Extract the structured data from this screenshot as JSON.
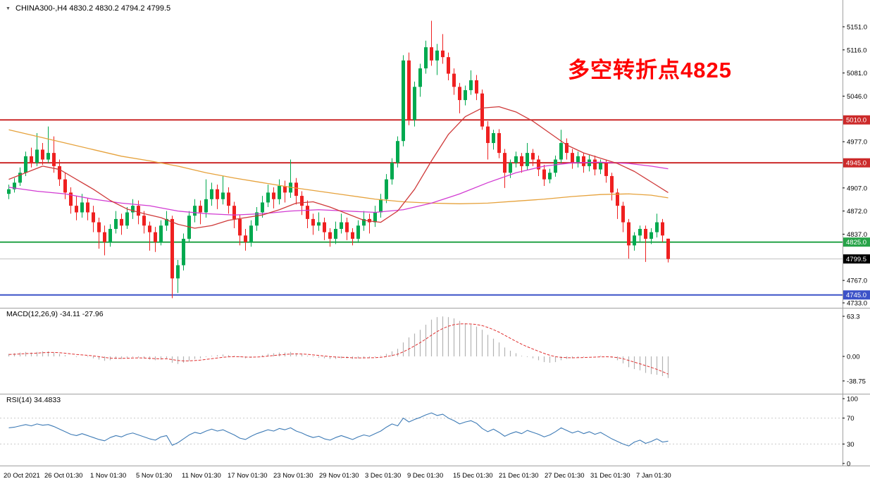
{
  "icons": {
    "chart_marker": "▼"
  },
  "header": {
    "title_line": "CHINA300-,H4 4830.2 4830.2 4794.2 4799.5"
  },
  "annotation": {
    "text": "多空转折点4825",
    "color": "#fe0000"
  },
  "colors": {
    "up": "#00a94f",
    "down": "#ef2020",
    "macd_hist": "#b3b3b3",
    "macd_signal": "#e03030",
    "rsi": "#3e7bb6",
    "ma_fast_red": "#cf3a3a",
    "ma_mid_magenta": "#d23bd2",
    "ma_slow_orange": "#e6a23c",
    "axis_text": "#000000",
    "divider": "#a0a0a0"
  },
  "chart_data": {
    "type": "candlestick",
    "symbol": "CHINA300-",
    "timeframe": "H4",
    "current_bar": {
      "open": 4830.2,
      "high": 4830.2,
      "low": 4794.2,
      "close": 4799.5
    },
    "ylim": [
      4733.0,
      5151.0
    ],
    "y_axis_ticks": [
      5151.0,
      5116.0,
      5081.0,
      5046.0,
      4977.0,
      4907.0,
      4872.0,
      4837.0,
      4767.0,
      4733.0
    ],
    "hlines": [
      {
        "value": 5010.0,
        "label": "5010.0",
        "color": "#cc2a2a",
        "width": 2
      },
      {
        "value": 4945.0,
        "label": "4945.0",
        "color": "#cc2a2a",
        "width": 2
      },
      {
        "value": 4825.0,
        "label": "4825.0",
        "color": "#27a348",
        "width": 2
      },
      {
        "value": 4745.0,
        "label": "4745.0",
        "color": "#3c52c8",
        "width": 2
      },
      {
        "value": 4799.5,
        "label": "4799.5",
        "color": "#c0c0c0",
        "width": 1,
        "label_bg": "#000000",
        "role": "current-price-line"
      }
    ],
    "x_labels": [
      [
        "20 Oct 2021",
        5
      ],
      [
        "26 Oct 01:30",
        63
      ],
      [
        "1 Nov 01:30",
        128
      ],
      [
        "5 Nov 01:30",
        193
      ],
      [
        "11 Nov 01:30",
        258
      ],
      [
        "17 Nov 01:30",
        323
      ],
      [
        "23 Nov 01:30",
        388
      ],
      [
        "29 Nov 01:30",
        453
      ],
      [
        "3 Dec 01:30",
        518
      ],
      [
        "9 Dec 01:30",
        578
      ],
      [
        "15 Dec 01:30",
        643
      ],
      [
        "21 Dec 01:30",
        708
      ],
      [
        "27 Dec 01:30",
        773
      ],
      [
        "31 Dec 01:30",
        838
      ],
      [
        "7 Jan 01:30",
        903
      ]
    ],
    "candles": [
      [
        4898,
        4912,
        4890,
        4905
      ],
      [
        4905,
        4922,
        4900,
        4915
      ],
      [
        4915,
        4938,
        4910,
        4930
      ],
      [
        4930,
        4962,
        4925,
        4955
      ],
      [
        4955,
        4968,
        4938,
        4945
      ],
      [
        4945,
        4990,
        4940,
        4965
      ],
      [
        4965,
        4975,
        4942,
        4950
      ],
      [
        4950,
        5000,
        4945,
        4960
      ],
      [
        4960,
        4985,
        4930,
        4940
      ],
      [
        4940,
        4950,
        4910,
        4920
      ],
      [
        4920,
        4930,
        4890,
        4900
      ],
      [
        4900,
        4908,
        4868,
        4880
      ],
      [
        4880,
        4895,
        4858,
        4870
      ],
      [
        4870,
        4898,
        4862,
        4885
      ],
      [
        4885,
        4892,
        4858,
        4870
      ],
      [
        4870,
        4880,
        4840,
        4855
      ],
      [
        4855,
        4862,
        4815,
        4840
      ],
      [
        4840,
        4850,
        4805,
        4825
      ],
      [
        4825,
        4852,
        4818,
        4845
      ],
      [
        4845,
        4872,
        4838,
        4860
      ],
      [
        4860,
        4868,
        4836,
        4850
      ],
      [
        4850,
        4878,
        4845,
        4870
      ],
      [
        4870,
        4890,
        4860,
        4880
      ],
      [
        4880,
        4888,
        4852,
        4865
      ],
      [
        4865,
        4872,
        4838,
        4850
      ],
      [
        4850,
        4856,
        4812,
        4840
      ],
      [
        4840,
        4848,
        4810,
        4825
      ],
      [
        4825,
        4858,
        4820,
        4850
      ],
      [
        4850,
        4872,
        4842,
        4860
      ],
      [
        4860,
        4865,
        4740,
        4770
      ],
      [
        4770,
        4798,
        4748,
        4790
      ],
      [
        4790,
        4838,
        4782,
        4830
      ],
      [
        4830,
        4872,
        4825,
        4865
      ],
      [
        4865,
        4890,
        4855,
        4880
      ],
      [
        4880,
        4888,
        4852,
        4870
      ],
      [
        4870,
        4920,
        4862,
        4890
      ],
      [
        4890,
        4915,
        4880,
        4905
      ],
      [
        4905,
        4912,
        4875,
        4890
      ],
      [
        4890,
        4925,
        4882,
        4900
      ],
      [
        4900,
        4908,
        4868,
        4880
      ],
      [
        4880,
        4886,
        4846,
        4860
      ],
      [
        4860,
        4866,
        4820,
        4835
      ],
      [
        4835,
        4845,
        4812,
        4825
      ],
      [
        4825,
        4858,
        4818,
        4850
      ],
      [
        4850,
        4878,
        4842,
        4870
      ],
      [
        4870,
        4895,
        4862,
        4885
      ],
      [
        4885,
        4912,
        4878,
        4900
      ],
      [
        4900,
        4908,
        4876,
        4890
      ],
      [
        4890,
        4920,
        4882,
        4910
      ],
      [
        4910,
        4918,
        4885,
        4900
      ],
      [
        4900,
        4950,
        4892,
        4915
      ],
      [
        4915,
        4922,
        4882,
        4895
      ],
      [
        4895,
        4902,
        4866,
        4880
      ],
      [
        4880,
        4888,
        4846,
        4860
      ],
      [
        4860,
        4868,
        4836,
        4850
      ],
      [
        4850,
        4870,
        4842,
        4855
      ],
      [
        4855,
        4862,
        4828,
        4840
      ],
      [
        4840,
        4846,
        4818,
        4830
      ],
      [
        4830,
        4856,
        4822,
        4845
      ],
      [
        4845,
        4868,
        4838,
        4855
      ],
      [
        4855,
        4862,
        4828,
        4840
      ],
      [
        4840,
        4846,
        4820,
        4830
      ],
      [
        4830,
        4858,
        4824,
        4850
      ],
      [
        4850,
        4872,
        4842,
        4860
      ],
      [
        4860,
        4868,
        4838,
        4855
      ],
      [
        4855,
        4880,
        4848,
        4870
      ],
      [
        4870,
        4898,
        4862,
        4890
      ],
      [
        4890,
        4928,
        4884,
        4920
      ],
      [
        4920,
        4952,
        4912,
        4945
      ],
      [
        4945,
        4985,
        4938,
        4978
      ],
      [
        4978,
        5108,
        4970,
        5100
      ],
      [
        5100,
        5112,
        5002,
        5010
      ],
      [
        5010,
        5068,
        5000,
        5060
      ],
      [
        5060,
        5095,
        5045,
        5088
      ],
      [
        5088,
        5130,
        5080,
        5120
      ],
      [
        5120,
        5160,
        5092,
        5100
      ],
      [
        5100,
        5125,
        5078,
        5115
      ],
      [
        5115,
        5140,
        5095,
        5105
      ],
      [
        5105,
        5112,
        5070,
        5080
      ],
      [
        5080,
        5088,
        5048,
        5060
      ],
      [
        5060,
        5066,
        5020,
        5040
      ],
      [
        5040,
        5062,
        5032,
        5055
      ],
      [
        5055,
        5085,
        5048,
        5070
      ],
      [
        5070,
        5078,
        5040,
        5050
      ],
      [
        5050,
        5056,
        4995,
        5000
      ],
      [
        5000,
        5008,
        4950,
        4975
      ],
      [
        4975,
        4995,
        4965,
        4990
      ],
      [
        4990,
        4996,
        4952,
        4960
      ],
      [
        4960,
        4966,
        4907,
        4930
      ],
      [
        4930,
        4950,
        4922,
        4945
      ],
      [
        4945,
        4962,
        4938,
        4955
      ],
      [
        4955,
        4960,
        4930,
        4940
      ],
      [
        4940,
        4975,
        4934,
        4960
      ],
      [
        4960,
        4966,
        4940,
        4950
      ],
      [
        4950,
        4956,
        4925,
        4935
      ],
      [
        4935,
        4942,
        4910,
        4920
      ],
      [
        4920,
        4936,
        4914,
        4930
      ],
      [
        4930,
        4956,
        4924,
        4950
      ],
      [
        4950,
        4995,
        4944,
        4975
      ],
      [
        4975,
        4982,
        4950,
        4960
      ],
      [
        4960,
        4966,
        4936,
        4945
      ],
      [
        4945,
        4962,
        4938,
        4955
      ],
      [
        4955,
        4960,
        4930,
        4940
      ],
      [
        4940,
        4958,
        4932,
        4950
      ],
      [
        4950,
        4956,
        4926,
        4935
      ],
      [
        4935,
        4950,
        4928,
        4945
      ],
      [
        4945,
        4950,
        4915,
        4925
      ],
      [
        4925,
        4930,
        4888,
        4900
      ],
      [
        4900,
        4906,
        4860,
        4880
      ],
      [
        4880,
        4886,
        4840,
        4855
      ],
      [
        4855,
        4860,
        4800,
        4820
      ],
      [
        4820,
        4840,
        4812,
        4835
      ],
      [
        4835,
        4850,
        4826,
        4845
      ],
      [
        4845,
        4850,
        4795,
        4830
      ],
      [
        4830,
        4846,
        4822,
        4840
      ],
      [
        4840,
        4868,
        4832,
        4855
      ],
      [
        4855,
        4860,
        4825,
        4835
      ],
      [
        4830.2,
        4830.2,
        4794.2,
        4799.5
      ]
    ],
    "ma_orange": [
      [
        0,
        4995
      ],
      [
        5,
        4985
      ],
      [
        10,
        4975
      ],
      [
        15,
        4965
      ],
      [
        20,
        4955
      ],
      [
        25,
        4948
      ],
      [
        30,
        4940
      ],
      [
        35,
        4930
      ],
      [
        40,
        4922
      ],
      [
        45,
        4915
      ],
      [
        50,
        4908
      ],
      [
        55,
        4902
      ],
      [
        60,
        4896
      ],
      [
        65,
        4890
      ],
      [
        70,
        4886
      ],
      [
        75,
        4884
      ],
      [
        80,
        4883
      ],
      [
        85,
        4884
      ],
      [
        90,
        4887
      ],
      [
        95,
        4890
      ],
      [
        100,
        4894
      ],
      [
        105,
        4897
      ],
      [
        110,
        4898
      ],
      [
        114,
        4896
      ],
      [
        117,
        4892
      ]
    ],
    "ma_magenta": [
      [
        0,
        4908
      ],
      [
        5,
        4902
      ],
      [
        10,
        4898
      ],
      [
        15,
        4890
      ],
      [
        20,
        4884
      ],
      [
        25,
        4880
      ],
      [
        30,
        4872
      ],
      [
        35,
        4868
      ],
      [
        40,
        4866
      ],
      [
        45,
        4868
      ],
      [
        50,
        4872
      ],
      [
        55,
        4874
      ],
      [
        60,
        4872
      ],
      [
        65,
        4870
      ],
      [
        70,
        4874
      ],
      [
        75,
        4884
      ],
      [
        80,
        4898
      ],
      [
        85,
        4915
      ],
      [
        90,
        4930
      ],
      [
        95,
        4940
      ],
      [
        100,
        4945
      ],
      [
        105,
        4946
      ],
      [
        110,
        4944
      ],
      [
        114,
        4940
      ],
      [
        117,
        4936
      ]
    ],
    "ma_red": [
      [
        0,
        4920
      ],
      [
        3,
        4930
      ],
      [
        6,
        4940
      ],
      [
        9,
        4935
      ],
      [
        12,
        4920
      ],
      [
        15,
        4905
      ],
      [
        18,
        4888
      ],
      [
        21,
        4875
      ],
      [
        24,
        4868
      ],
      [
        27,
        4862
      ],
      [
        30,
        4852
      ],
      [
        33,
        4846
      ],
      [
        36,
        4850
      ],
      [
        39,
        4858
      ],
      [
        42,
        4862
      ],
      [
        45,
        4866
      ],
      [
        48,
        4874
      ],
      [
        51,
        4884
      ],
      [
        54,
        4886
      ],
      [
        57,
        4878
      ],
      [
        60,
        4868
      ],
      [
        63,
        4858
      ],
      [
        66,
        4855
      ],
      [
        69,
        4872
      ],
      [
        72,
        4905
      ],
      [
        75,
        4948
      ],
      [
        78,
        4988
      ],
      [
        81,
        5015
      ],
      [
        84,
        5028
      ],
      [
        87,
        5030
      ],
      [
        90,
        5022
      ],
      [
        93,
        5008
      ],
      [
        96,
        4990
      ],
      [
        99,
        4972
      ],
      [
        102,
        4960
      ],
      [
        105,
        4952
      ],
      [
        108,
        4944
      ],
      [
        111,
        4932
      ],
      [
        114,
        4916
      ],
      [
        117,
        4900
      ]
    ],
    "macd": {
      "title": "MACD(12,26,9) -34.11 -27.96",
      "params": "12,26,9",
      "value": -34.11,
      "signal_value": -27.96,
      "y_ticks": [
        {
          "label": "63.3",
          "value": 63.3
        },
        {
          "label": "0.00",
          "value": 0
        },
        {
          "label": "-38.75",
          "value": -38.75
        }
      ],
      "hist": [
        4,
        5,
        6,
        7,
        6,
        7,
        8,
        8,
        6,
        4,
        2,
        0,
        -1,
        0,
        -1,
        -3,
        -5,
        -7,
        -6,
        -4,
        -4,
        -2,
        -1,
        -2,
        -3,
        -5,
        -6,
        -5,
        -3,
        -10,
        -12,
        -10,
        -7,
        -4,
        -3,
        -1,
        1,
        2,
        3,
        2,
        1,
        -1,
        -3,
        -2,
        0,
        2,
        4,
        5,
        6,
        6,
        7,
        5,
        3,
        1,
        -1,
        -2,
        -3,
        -4,
        -4,
        -3,
        -3,
        -4,
        -3,
        -2,
        -2,
        -1,
        1,
        4,
        8,
        12,
        22,
        30,
        36,
        42,
        50,
        58,
        62,
        63,
        62,
        60,
        56,
        52,
        50,
        47,
        42,
        34,
        28,
        22,
        14,
        9,
        5,
        1,
        -1,
        -3,
        -6,
        -9,
        -10,
        -9,
        -6,
        -4,
        -3,
        -1,
        -1,
        0,
        0,
        1,
        0,
        -2,
        -6,
        -11,
        -17,
        -20,
        -22,
        -26,
        -28,
        -29,
        -31,
        -34.11
      ],
      "signal": [
        3,
        3.4,
        3.9,
        4.5,
        4.8,
        5.2,
        5.8,
        6.2,
        6.2,
        5.8,
        5,
        4,
        3,
        2.4,
        1.7,
        0.8,
        -0.4,
        -1.7,
        -2.6,
        -2.9,
        -3.1,
        -2.9,
        -2.5,
        -2.4,
        -2.5,
        -3,
        -3.6,
        -3.9,
        -3.7,
        -5,
        -6.4,
        -7.1,
        -7.1,
        -6.5,
        -5.8,
        -4.8,
        -3.6,
        -2.5,
        -1.4,
        -0.7,
        -0.4,
        -0.5,
        -1,
        -1.2,
        -1,
        -0.4,
        0.5,
        1.4,
        2.3,
        3,
        3.8,
        4,
        3.8,
        3.2,
        2.4,
        1.5,
        0.6,
        -0.3,
        -1,
        -1.4,
        -1.7,
        -2.2,
        -2.4,
        -2.3,
        -2.2,
        -2,
        -1.4,
        -0.3,
        1.4,
        3.5,
        7.2,
        11.8,
        16.6,
        21.7,
        27.4,
        33.5,
        39.2,
        44,
        47.6,
        50.1,
        51.3,
        51.4,
        51.1,
        50.3,
        48.6,
        45.7,
        42.2,
        38.2,
        33.4,
        28.5,
        23.8,
        19.2,
        15.2,
        11.6,
        8.1,
        4.7,
        1.8,
        -0.4,
        -1.5,
        -2,
        -2.2,
        -2,
        -1.8,
        -1.4,
        -1.1,
        -0.7,
        -0.6,
        -0.9,
        -1.9,
        -3.7,
        -6.4,
        -9.1,
        -11.7,
        -14.6,
        -17.3,
        -20.5,
        -24,
        -27.96
      ]
    },
    "rsi": {
      "title": "RSI(14) 34.4833",
      "period": 14,
      "value": 34.4833,
      "y_ticks": [
        100,
        70,
        30,
        0
      ],
      "levels": [
        70,
        30
      ],
      "values": [
        55,
        56,
        58,
        60,
        58,
        61,
        59,
        60,
        57,
        53,
        49,
        45,
        43,
        46,
        43,
        40,
        37,
        35,
        40,
        43,
        41,
        45,
        47,
        44,
        41,
        38,
        36,
        41,
        43,
        28,
        32,
        38,
        44,
        48,
        46,
        50,
        53,
        50,
        52,
        48,
        44,
        39,
        37,
        42,
        46,
        49,
        52,
        50,
        54,
        52,
        55,
        50,
        47,
        43,
        40,
        42,
        38,
        36,
        40,
        43,
        40,
        37,
        41,
        44,
        42,
        46,
        50,
        56,
        61,
        58,
        70,
        64,
        68,
        71,
        75,
        78,
        74,
        76,
        70,
        66,
        61,
        64,
        66,
        62,
        54,
        49,
        53,
        48,
        42,
        46,
        49,
        46,
        51,
        48,
        45,
        41,
        44,
        49,
        55,
        51,
        47,
        50,
        46,
        49,
        45,
        48,
        43,
        38,
        34,
        30,
        27,
        33,
        36,
        31,
        34,
        38,
        33,
        34.48
      ]
    }
  }
}
